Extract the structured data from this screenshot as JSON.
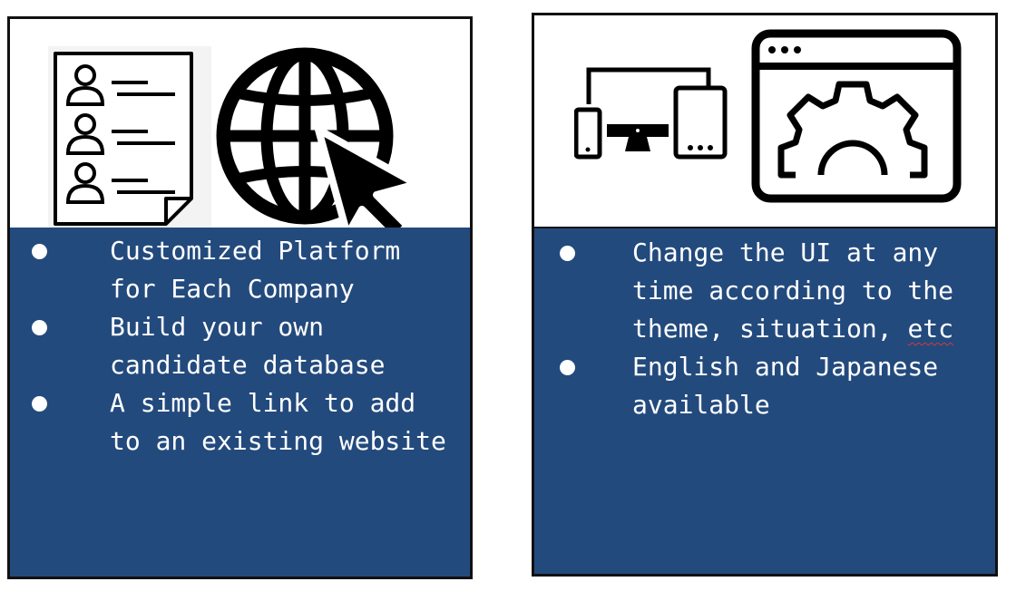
{
  "left_card": {
    "icons": [
      "candidate-list-icon",
      "globe-icon",
      "cursor-arrow-icon"
    ],
    "bullets": [
      "Customized Platform for Each Company",
      "Build your own candidate database",
      "A simple link to add to an existing website"
    ]
  },
  "right_card": {
    "icons": [
      "multi-device-icon",
      "browser-settings-icon",
      "gear-icon"
    ],
    "bullets": [
      "Change the UI at any time according to the theme, situation, ",
      "English and Japanese available"
    ],
    "spellcheck_word": "etc"
  },
  "colors": {
    "panel": "#234a7d",
    "border": "#111111",
    "icon": "#000000",
    "text": "#ffffff",
    "spellcheck_underline": "#d23a3a"
  }
}
